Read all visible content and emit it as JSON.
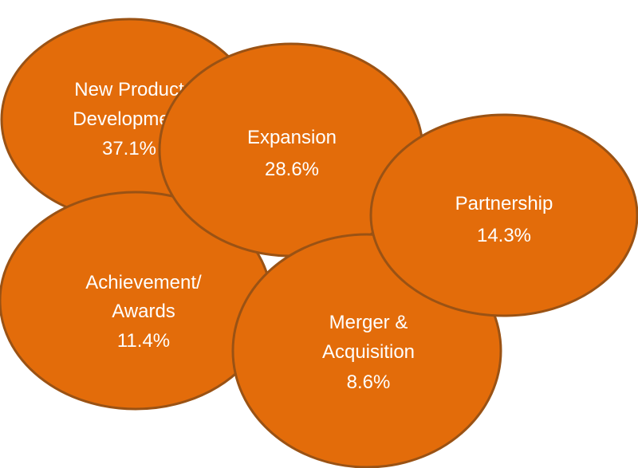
{
  "colors": {
    "fill": "#E36C0A",
    "stroke": "#9A5214",
    "text": "#FFFFFF"
  },
  "bubbles": [
    {
      "lines": [
        "New Product",
        "Development"
      ],
      "value": "37.1%"
    },
    {
      "lines": [
        "Achievement/",
        "Awards"
      ],
      "value": "11.4%"
    },
    {
      "lines": [
        "Expansion"
      ],
      "value": "28.6%"
    },
    {
      "lines": [
        "Merger &",
        "Acquisition"
      ],
      "value": "8.6%"
    },
    {
      "lines": [
        "Partnership"
      ],
      "value": "14.3%"
    }
  ]
}
